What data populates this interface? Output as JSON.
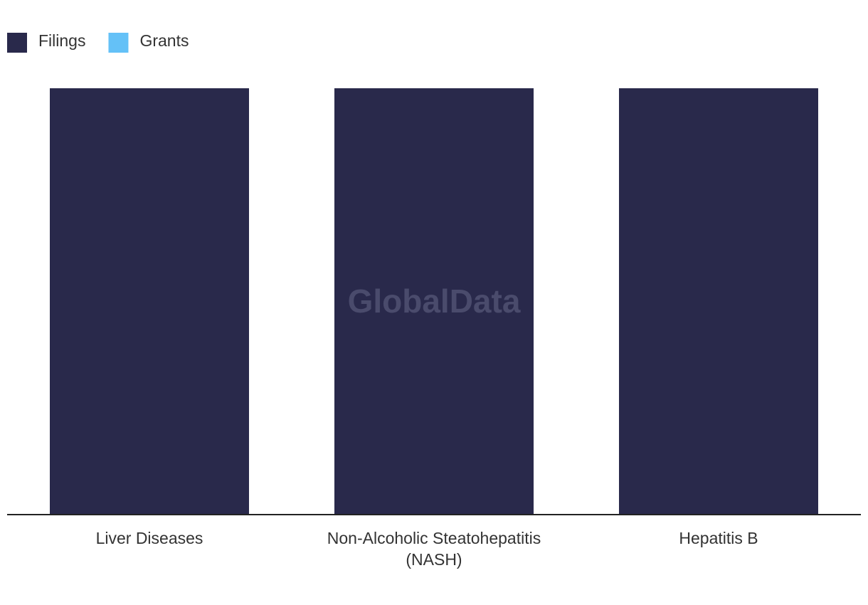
{
  "chart_data": {
    "type": "bar",
    "stacked": true,
    "watermark": "GlobalData",
    "categories": [
      "Liver Diseases",
      "Non-Alcoholic Steatohepatitis (NASH)",
      "Hepatitis B"
    ],
    "series": [
      {
        "name": "Filings",
        "color": "#29294b",
        "values": [
          1,
          1,
          1
        ]
      },
      {
        "name": "Grants",
        "color": "#64c1f7",
        "values": [
          0,
          0,
          0
        ]
      }
    ],
    "ylim": [
      0,
      1
    ]
  }
}
